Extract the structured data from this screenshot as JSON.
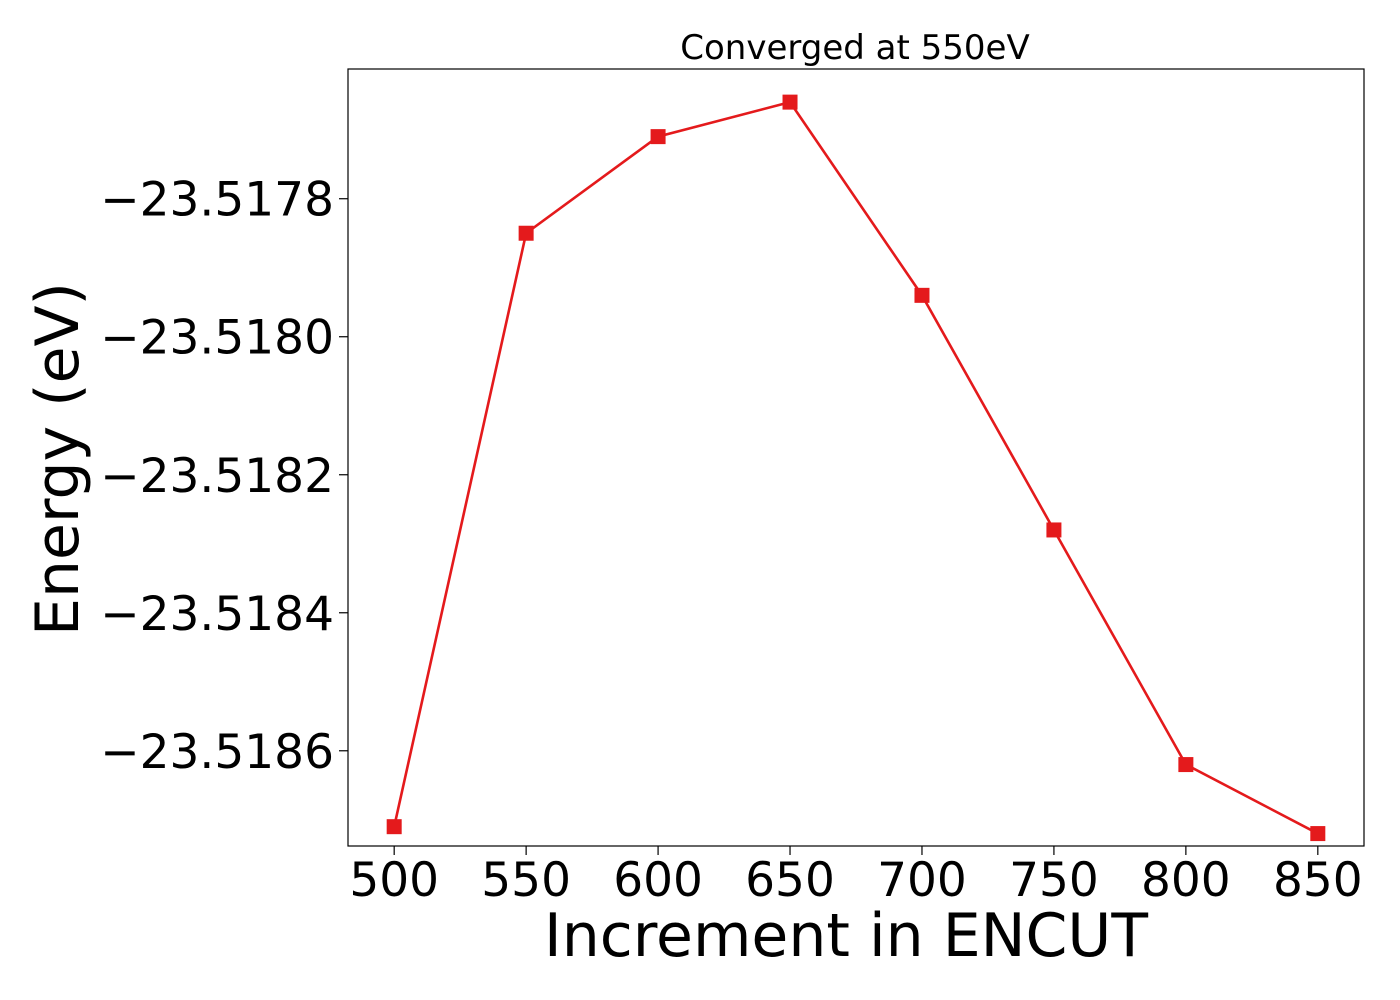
{
  "chart_data": {
    "type": "line",
    "title": "Converged at 550eV",
    "xlabel": "Increment in ENCUT",
    "ylabel": "Energy (eV)",
    "x": [
      500,
      550,
      600,
      650,
      700,
      750,
      800,
      850
    ],
    "series": [
      {
        "values": [
          -23.51871,
          -23.51785,
          -23.51771,
          -23.51766,
          -23.51794,
          -23.51828,
          -23.51862,
          -23.51872
        ],
        "color": "#e41a1c",
        "marker": "square"
      }
    ],
    "xticks": [
      500,
      550,
      600,
      650,
      700,
      750,
      800,
      850
    ],
    "xtick_labels": [
      "500",
      "550",
      "600",
      "650",
      "700",
      "750",
      "800",
      "850"
    ],
    "yticks": [
      -23.5178,
      -23.518,
      -23.5182,
      -23.5184,
      -23.5186
    ],
    "ytick_labels": [
      "−23.5178",
      "−23.5180",
      "−23.5182",
      "−23.5184",
      "−23.5186"
    ],
    "xlim": [
      482.5,
      867.5
    ],
    "ylim": [
      -23.518738,
      -23.517612
    ],
    "grid": false,
    "legend": false
  }
}
